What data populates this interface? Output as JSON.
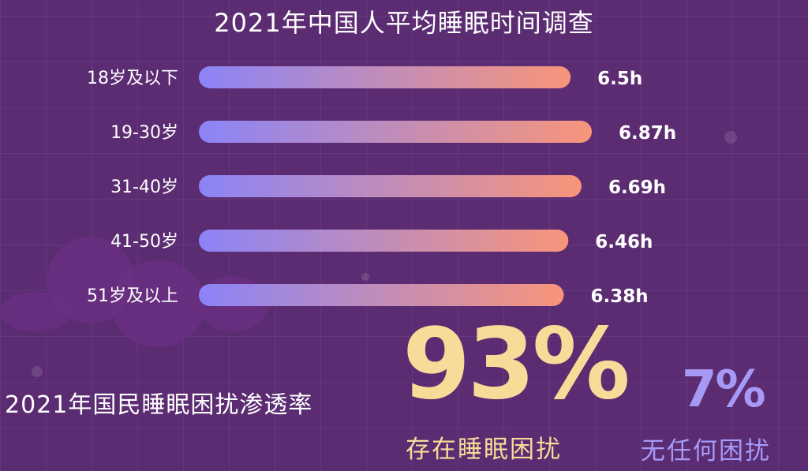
{
  "chart_data": {
    "type": "bar",
    "orientation": "horizontal",
    "title": "2021年中国人平均睡眠时间调查",
    "categories": [
      "18岁及以下",
      "19-30岁",
      "31-40岁",
      "41-50岁",
      "51岁及以上"
    ],
    "values": [
      6.5,
      6.87,
      6.69,
      6.46,
      6.38
    ],
    "value_labels": [
      "6.5h",
      "6.87h",
      "6.69h",
      "6.46h",
      "6.38h"
    ],
    "unit": "h",
    "grid": false,
    "legend": "none"
  },
  "penetration": {
    "title": "2021年国民睡眠困扰渗透率",
    "big_value": "93%",
    "big_caption": "存在睡眠困扰",
    "small_value": "7%",
    "small_caption": "无任何困扰"
  },
  "colors": {
    "background": "#5b2c72",
    "bar_start": "#8b84f7",
    "bar_end": "#f8957a",
    "highlight_gold": "#f6dc98",
    "highlight_lavender": "#a79af7"
  }
}
